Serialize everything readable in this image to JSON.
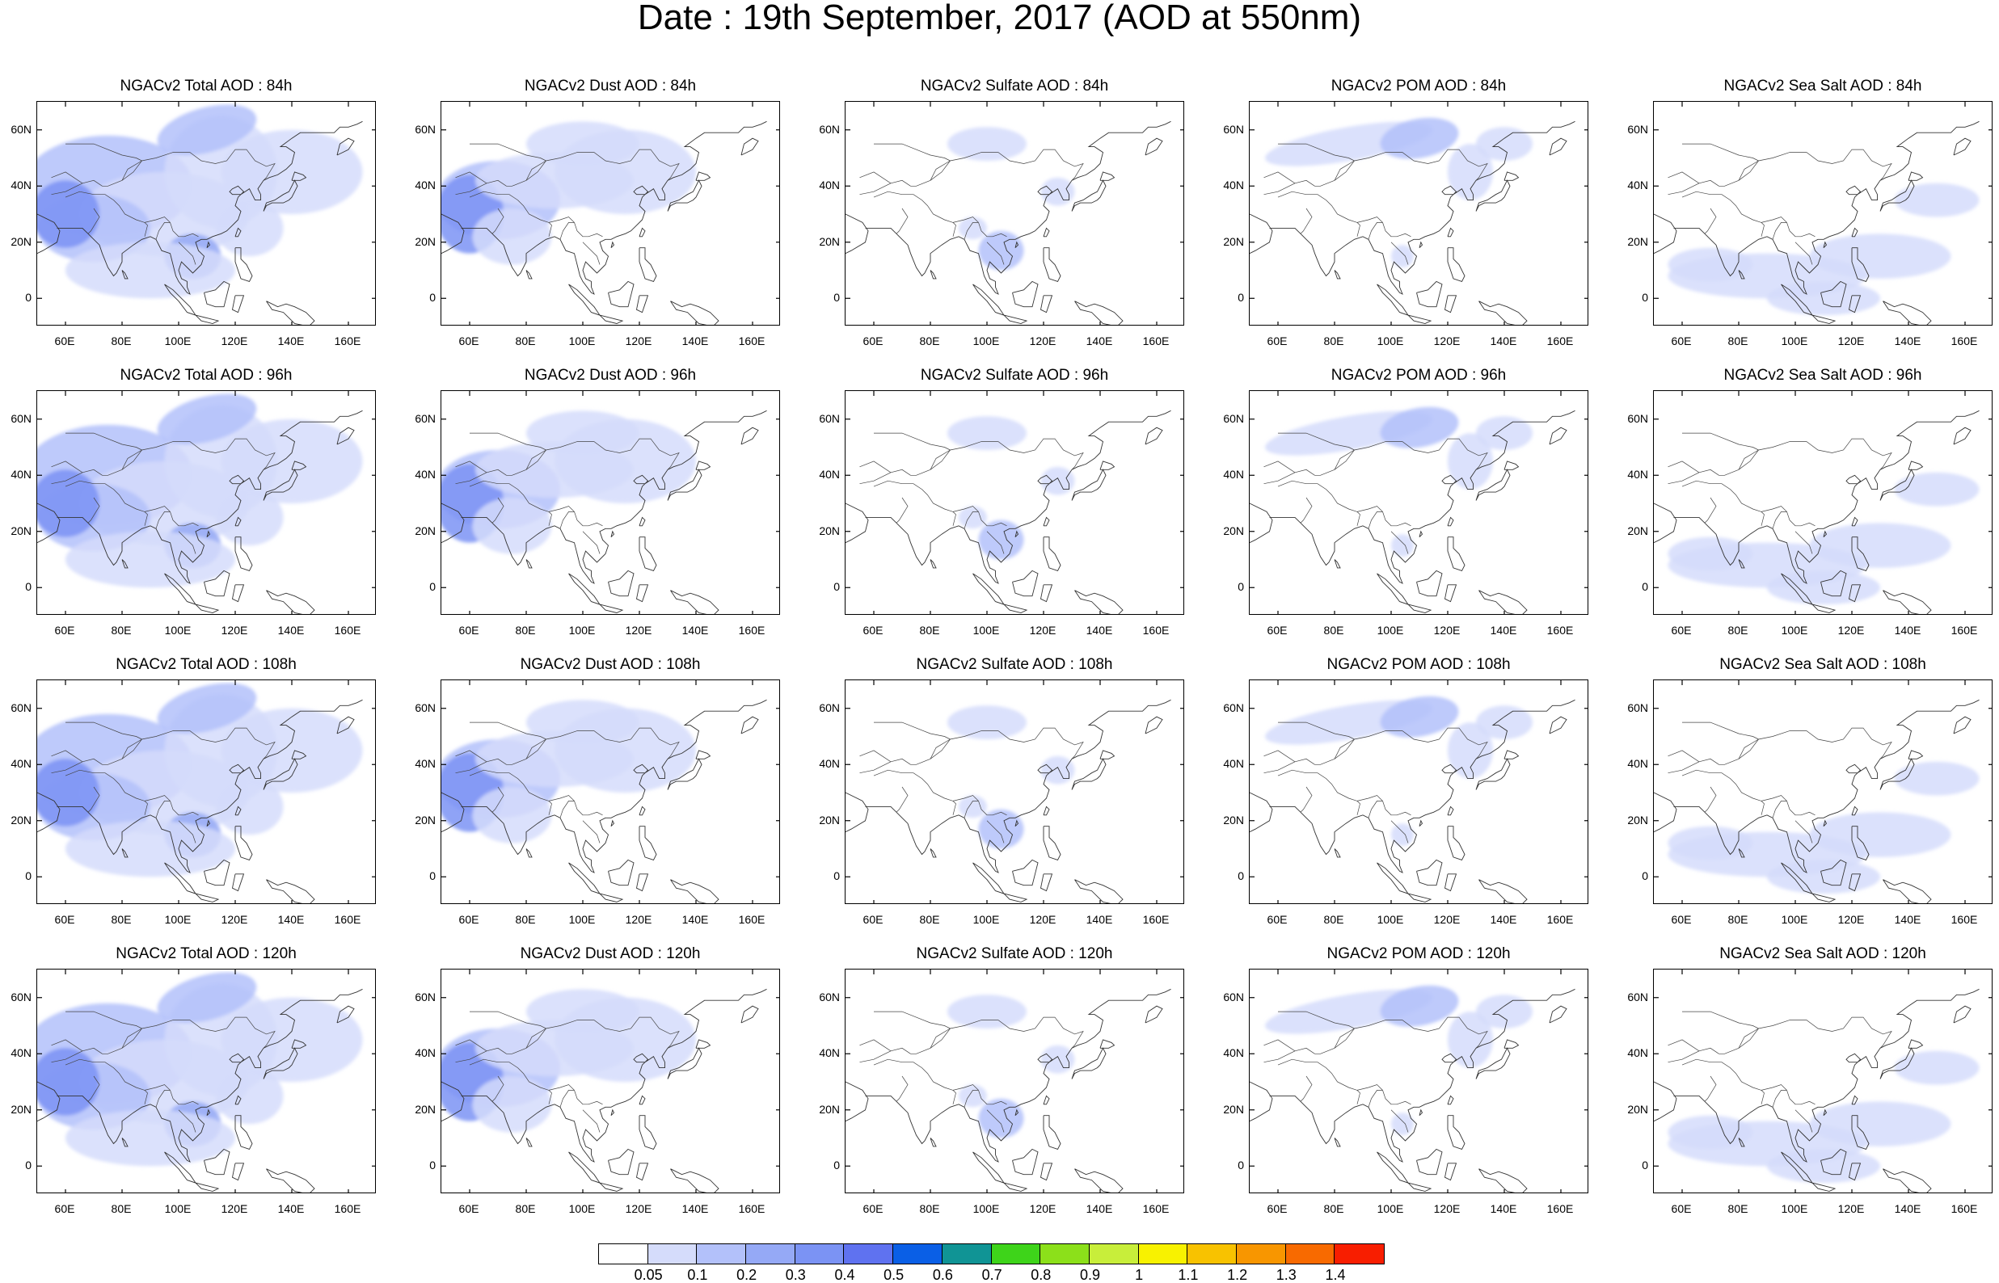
{
  "title": "Date : 19th September, 2017 (AOD at 550nm)",
  "panels": [
    [
      "NGACv2 Total AOD : 84h",
      "NGACv2 Dust AOD : 84h",
      "NGACv2 Sulfate AOD : 84h",
      "NGACv2 POM AOD : 84h",
      "NGACv2 Sea Salt AOD : 84h"
    ],
    [
      "NGACv2 Total AOD : 96h",
      "NGACv2 Dust AOD : 96h",
      "NGACv2 Sulfate AOD : 96h",
      "NGACv2 POM AOD : 96h",
      "NGACv2 Sea Salt AOD : 96h"
    ],
    [
      "NGACv2 Total AOD : 108h",
      "NGACv2 Dust AOD : 108h",
      "NGACv2 Sulfate AOD : 108h",
      "NGACv2 POM AOD : 108h",
      "NGACv2 Sea Salt AOD : 108h"
    ],
    [
      "NGACv2 Total AOD : 120h",
      "NGACv2 Dust AOD : 120h",
      "NGACv2 Sulfate AOD : 120h",
      "NGACv2 POM AOD : 120h",
      "NGACv2 Sea Salt  AOD : 120h"
    ]
  ],
  "lat_ticks": [
    "60N",
    "40N",
    "20N",
    "0"
  ],
  "lon_ticks": [
    "60E",
    "80E",
    "100E",
    "120E",
    "140E",
    "160E"
  ],
  "colorbar": {
    "labels": [
      "0.05",
      "0.1",
      "0.2",
      "0.3",
      "0.4",
      "0.5",
      "0.6",
      "0.7",
      "0.8",
      "0.9",
      "1",
      "1.1",
      "1.2",
      "1.3",
      "1.4"
    ],
    "colors": [
      "#ffffff",
      "#d5dcfb",
      "#b3c1fa",
      "#95a9f6",
      "#7b93f4",
      "#5f72f0",
      "#0a5fe6",
      "#109495",
      "#3ed41a",
      "#8ce01a",
      "#c8ee3a",
      "#f8f200",
      "#f8c200",
      "#f89600",
      "#f86a00",
      "#f81e00"
    ]
  },
  "map_extent": {
    "lon_min": 50,
    "lon_max": 170,
    "lat_min": -10,
    "lat_max": 70
  },
  "haze_colors": {
    "light": "#d5dcfb",
    "medium": "#b3c1fa",
    "strong": "#95a9f6",
    "heavy": "#7b93f4"
  }
}
